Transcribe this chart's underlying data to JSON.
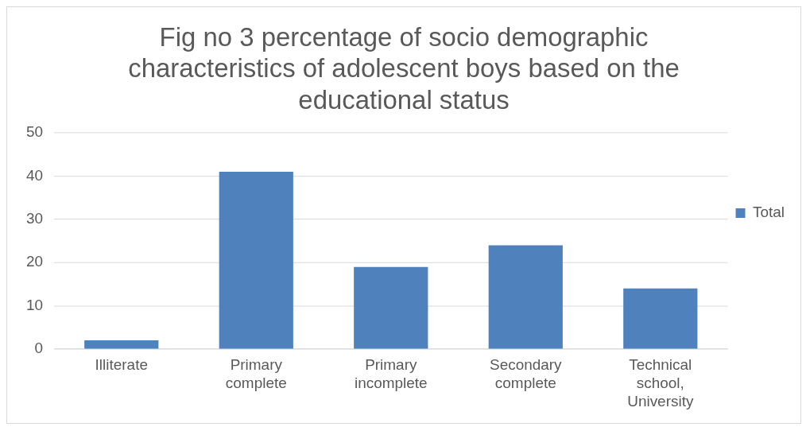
{
  "chart_data": {
    "type": "bar",
    "title": "Fig no 3 percentage of socio demographic characteristics of adolescent boys based on the educational status",
    "categories": [
      "Illiterate",
      "Primary complete",
      "Primary incomplete",
      "Secondary complete",
      "Technical school, University"
    ],
    "series": [
      {
        "name": "Total",
        "color": "#4f81bd",
        "values": [
          2,
          41,
          19,
          24,
          14
        ]
      }
    ],
    "ylim": [
      0,
      50
    ],
    "yticks": [
      0,
      10,
      20,
      30,
      40,
      50
    ],
    "grid": "y",
    "legend": "right"
  }
}
